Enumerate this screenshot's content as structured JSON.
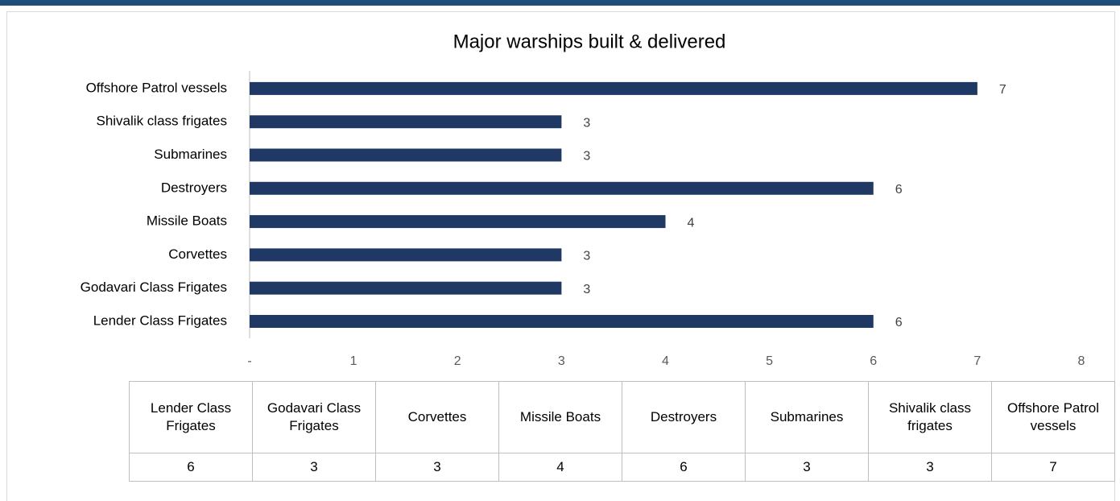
{
  "chart_data": {
    "type": "bar",
    "orientation": "horizontal",
    "title": "Major warships built & delivered",
    "categories": [
      "Lender Class Frigates",
      "Godavari Class Frigates",
      "Corvettes",
      "Missile Boats",
      "Destroyers",
      "Submarines",
      "Shivalik class frigates",
      "Offshore Patrol vessels"
    ],
    "values": [
      6,
      3,
      3,
      4,
      6,
      3,
      3,
      7
    ],
    "color": "#1f3864",
    "xlim": [
      0,
      8
    ],
    "xticks": [
      {
        "value": 0,
        "label": "-"
      },
      1,
      2,
      3,
      4,
      5,
      6,
      7,
      8
    ],
    "grid": false,
    "data_table": true
  }
}
